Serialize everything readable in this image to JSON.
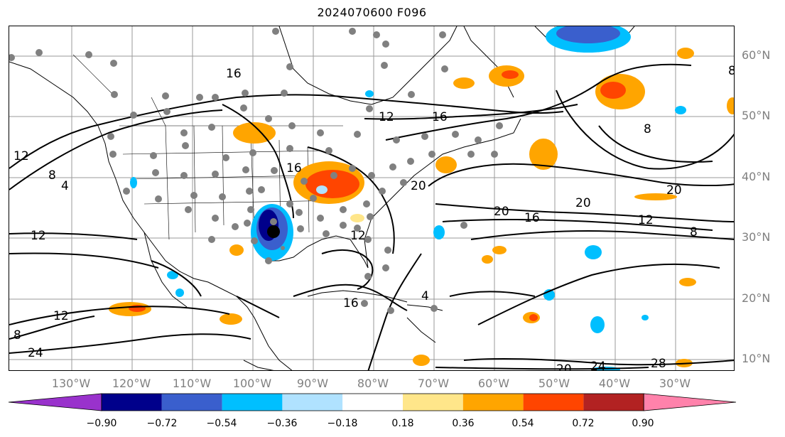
{
  "title": "2024070600 F096",
  "lat_labels": [
    "60°N",
    "50°N",
    "40°N",
    "30°N",
    "20°N",
    "10°N"
  ],
  "lon_labels": [
    "130°W",
    "120°W",
    "110°W",
    "100°W",
    "90°W",
    "80°W",
    "70°W",
    "60°W",
    "50°W",
    "40°W",
    "30°W"
  ],
  "contour_labels": [
    "16",
    "12",
    "16",
    "12",
    "8",
    "4",
    "16",
    "12",
    "20",
    "20",
    "16",
    "12",
    "8",
    "20",
    "20",
    "8",
    "8",
    "12",
    "16",
    "24",
    "8",
    "12",
    "20",
    "24",
    "28",
    "4"
  ],
  "colorbar": {
    "ticks": [
      "−0.90",
      "−0.72",
      "−0.54",
      "−0.36",
      "−0.18",
      "0.18",
      "0.36",
      "0.54",
      "0.72",
      "0.90"
    ],
    "colors": [
      "#9932cc",
      "#00008b",
      "#3a5fcd",
      "#00bfff",
      "#b0e2ff",
      "#ffffff",
      "#ffe68a",
      "#ffa500",
      "#ff4500",
      "#b22222",
      "#ff82ab"
    ]
  }
}
